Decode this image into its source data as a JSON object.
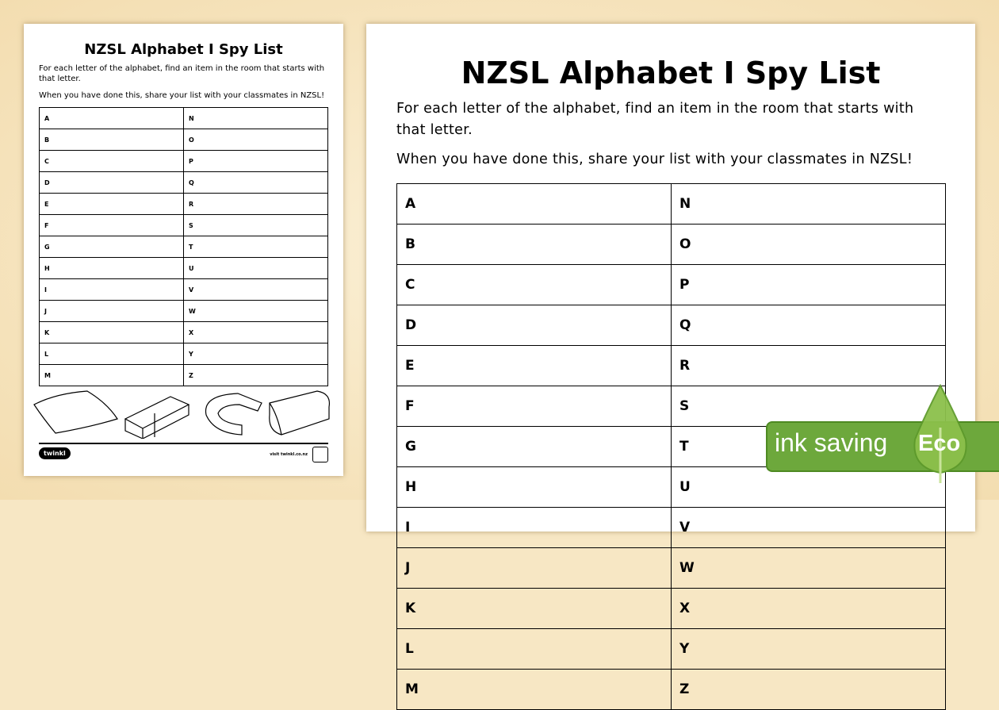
{
  "worksheet": {
    "title": "NZSL Alphabet I Spy List",
    "instruction1": "For each letter of the alphabet, find an item in the room that starts with that letter.",
    "instruction2": "When you have done this, share your list with your classmates in NZSL!",
    "rows": [
      [
        "A",
        "N"
      ],
      [
        "B",
        "O"
      ],
      [
        "C",
        "P"
      ],
      [
        "D",
        "Q"
      ],
      [
        "E",
        "R"
      ],
      [
        "F",
        "S"
      ],
      [
        "G",
        "T"
      ],
      [
        "H",
        "U"
      ],
      [
        "I",
        "V"
      ],
      [
        "J",
        "W"
      ],
      [
        "K",
        "X"
      ],
      [
        "L",
        "Y"
      ],
      [
        "M",
        "Z"
      ]
    ],
    "illustrations": [
      "pillow",
      "eraser",
      "magnet",
      "pencil-case"
    ],
    "logo": "twinkl",
    "footer_url": "visit twinkl.co.nz"
  },
  "eco_badge": {
    "label": "ink saving",
    "word": "Eco",
    "color": "#6da83c"
  }
}
